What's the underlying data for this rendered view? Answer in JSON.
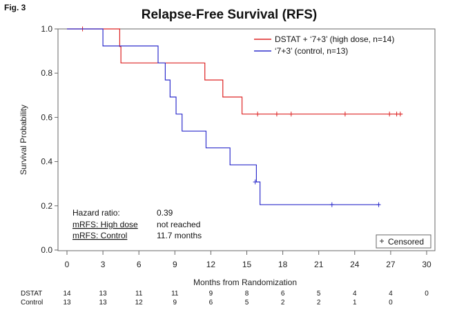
{
  "figure_label": "Fig. 3",
  "chart_data": {
    "type": "line",
    "subtype": "kaplan-meier step",
    "title": "Relapse-Free Survival (RFS)",
    "xlabel": "Months from Randomization",
    "ylabel": "Survival Probability",
    "xlim": [
      0,
      30
    ],
    "ylim": [
      0,
      1
    ],
    "x_ticks": [
      "0",
      "3",
      "6",
      "9",
      "12",
      "15",
      "18",
      "21",
      "24",
      "27",
      "30"
    ],
    "y_ticks": [
      "0.0",
      "0.2",
      "0.4",
      "0.6",
      "0.8",
      "1.0"
    ],
    "series": [
      {
        "name": "DSTAT + ‘7+3’ (high dose, n=14)",
        "color": "#dd2222",
        "steps": [
          [
            0,
            1.0
          ],
          [
            4.4,
            0.92
          ],
          [
            4.5,
            0.846
          ],
          [
            8.5,
            0.846
          ],
          [
            11.5,
            0.769
          ],
          [
            12.9,
            0.769
          ],
          [
            13.0,
            0.692
          ],
          [
            14.5,
            0.692
          ],
          [
            14.6,
            0.615
          ],
          [
            28.0,
            0.615
          ]
        ],
        "censored": [
          [
            1.3,
            1.0
          ],
          [
            15.9,
            0.615
          ],
          [
            17.5,
            0.615
          ],
          [
            18.7,
            0.615
          ],
          [
            23.2,
            0.615
          ],
          [
            26.9,
            0.615
          ],
          [
            27.5,
            0.615
          ],
          [
            27.8,
            0.615
          ]
        ]
      },
      {
        "name": "‘7+3’  (control, n=13)",
        "color": "#2d2dcc",
        "steps": [
          [
            0,
            1.0
          ],
          [
            3.0,
            1.0
          ],
          [
            3.0,
            0.923
          ],
          [
            7.6,
            0.923
          ],
          [
            7.6,
            0.846
          ],
          [
            8.2,
            0.846
          ],
          [
            8.2,
            0.769
          ],
          [
            8.6,
            0.769
          ],
          [
            8.6,
            0.692
          ],
          [
            9.1,
            0.692
          ],
          [
            9.1,
            0.615
          ],
          [
            9.6,
            0.615
          ],
          [
            9.6,
            0.538
          ],
          [
            11.6,
            0.538
          ],
          [
            11.6,
            0.462
          ],
          [
            13.6,
            0.462
          ],
          [
            13.6,
            0.385
          ],
          [
            15.8,
            0.385
          ],
          [
            15.8,
            0.308
          ],
          [
            16.1,
            0.308
          ],
          [
            16.1,
            0.205
          ],
          [
            26.1,
            0.205
          ]
        ],
        "censored": [
          [
            15.7,
            0.308
          ],
          [
            22.1,
            0.205
          ],
          [
            26.0,
            0.205
          ]
        ]
      }
    ],
    "legend_position": "top-right",
    "censored_label": "Censored",
    "stats": {
      "hazard_ratio_label": "Hazard ratio:",
      "hazard_ratio_value": "0.39",
      "mrfs_high_label": "mRFS: High dose",
      "mrfs_high_value": "not reached",
      "mrfs_control_label": "mRFS: Control",
      "mrfs_control_value": "11.7 months"
    },
    "at_risk": {
      "rows": [
        {
          "label": "DSTAT",
          "values": [
            "14",
            "13",
            "11",
            "11",
            "9",
            "8",
            "6",
            "5",
            "4",
            "4",
            "0"
          ]
        },
        {
          "label": "Control",
          "values": [
            "13",
            "13",
            "12",
            "9",
            "6",
            "5",
            "2",
            "2",
            "1",
            "0"
          ]
        }
      ]
    }
  }
}
